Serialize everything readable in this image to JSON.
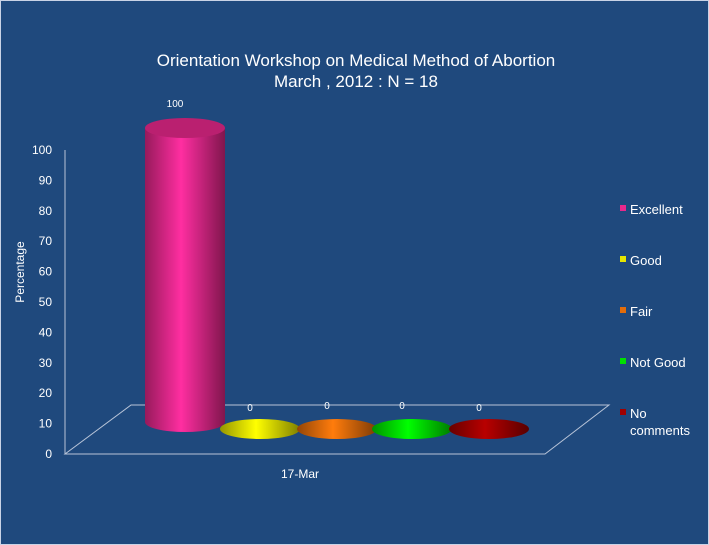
{
  "chart_data": {
    "type": "bar",
    "title": "Orientation Workshop on Medical Method of Abortion",
    "subtitle": "March , 2012 : N = 18",
    "ylabel": "Percentage",
    "xlabel": "",
    "ylim": [
      0,
      100
    ],
    "yticks": [
      0,
      10,
      20,
      30,
      40,
      50,
      60,
      70,
      80,
      90,
      100
    ],
    "categories": [
      "17-Mar"
    ],
    "series": [
      {
        "name": "Excellent",
        "values": [
          100
        ],
        "color": "#e8288c",
        "label": "100"
      },
      {
        "name": "Good",
        "values": [
          0
        ],
        "color": "#e6e600",
        "label": "0"
      },
      {
        "name": "Fair",
        "values": [
          0
        ],
        "color": "#e36c0a",
        "label": "0"
      },
      {
        "name": "Not Good",
        "values": [
          0
        ],
        "color": "#00e000",
        "label": "0"
      },
      {
        "name": "No comments",
        "values": [
          0
        ],
        "color": "#a00000",
        "label": "0"
      }
    ],
    "legend_position": "right",
    "grid": false,
    "background": "#1f497d"
  }
}
